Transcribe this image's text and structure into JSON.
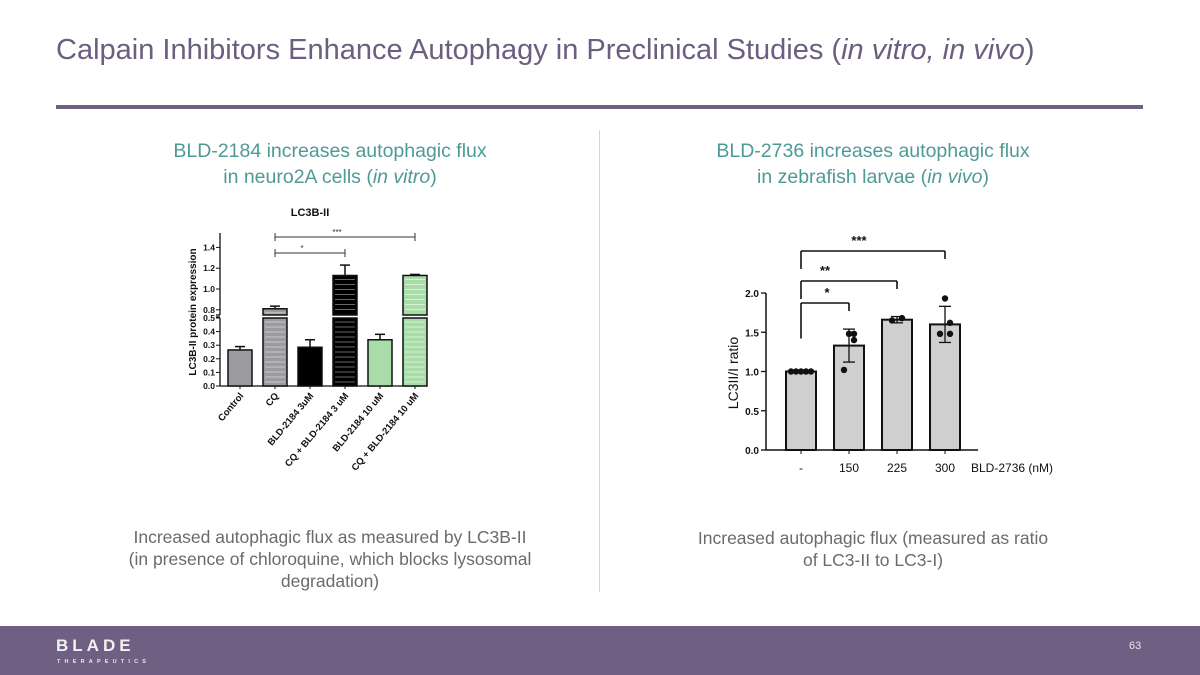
{
  "slide": {
    "title_main": "Calpain Inhibitors Enhance Autophagy in Preclinical Studies (",
    "title_italic": "in vitro, in vivo",
    "title_end": ")",
    "page_number": "63",
    "brand_colors": {
      "accent": "#6f6083",
      "teal": "#4e9a97",
      "text_gray": "#6b6b6b"
    }
  },
  "left_panel": {
    "subhead_line1": "BLD-2184 increases autophagic flux",
    "subhead_line2_start": "in neuro2A cells (",
    "subhead_line2_italic": "in vitro",
    "subhead_line2_end": ")",
    "caption_line1": "Increased autophagic flux as measured by LC3B-II",
    "caption_line2": "(in presence of chloroquine, which blocks lysosomal",
    "caption_line3": "degradation)"
  },
  "right_panel": {
    "subhead_line1": "BLD-2736 increases autophagic flux",
    "subhead_line2_start": "in zebrafish larvae (",
    "subhead_line2_italic": "in vivo",
    "subhead_line2_end": ")",
    "caption_line1": "Increased autophagic flux (measured as ratio",
    "caption_line2": "of LC3-II to LC3-I)"
  },
  "footer": {
    "logo_main": "BLADE",
    "logo_sub": "THERAPEUTICS"
  },
  "chart_data": [
    {
      "type": "bar",
      "title": "LC3B-II",
      "xlabel": "",
      "ylabel": "LC3B-II protein expression",
      "axis_break": {
        "lower": [
          0.0,
          0.5
        ],
        "upper": [
          0.75,
          1.5
        ]
      },
      "yticks_lower": [
        "0.0",
        "0.1",
        "0.2",
        "0.3",
        "0.4",
        "0.5"
      ],
      "yticks_upper": [
        "0.8",
        "1.0",
        "1.2",
        "1.4"
      ],
      "categories": [
        "Control",
        "CQ",
        "BLD-2184 3uM",
        "CQ + BLD-2184 3 uM",
        "BLD-2184 10 uM",
        "CQ + BLD-2184 10 uM"
      ],
      "values": [
        0.265,
        0.81,
        0.285,
        1.13,
        0.34,
        1.13
      ],
      "error": [
        0.025,
        0.025,
        0.055,
        0.1,
        0.04,
        0.01
      ],
      "fills": [
        "#9b9b9f",
        "#9b9b9f",
        "#000000",
        "#000000",
        "#a8dca8",
        "#a8dca8"
      ],
      "hatched": [
        false,
        true,
        false,
        true,
        false,
        true
      ],
      "significance": [
        {
          "from": "CQ",
          "to": "CQ + BLD-2184 10 uM",
          "label": "***"
        },
        {
          "from": "CQ",
          "to": "CQ + BLD-2184 3 uM",
          "label": "*"
        }
      ],
      "grid": false,
      "legend": "none"
    },
    {
      "type": "bar",
      "title": "",
      "xlabel": "BLD-2736 (nM)",
      "ylabel": "LC3II/I ratio",
      "ylim": [
        0,
        2.0
      ],
      "yticks": [
        "0.0",
        "0.5",
        "1.0",
        "1.5",
        "2.0"
      ],
      "categories": [
        "-",
        "150",
        "225",
        "300"
      ],
      "values": [
        1.0,
        1.33,
        1.66,
        1.6
      ],
      "error": [
        0.0,
        0.21,
        0.04,
        0.23
      ],
      "points": [
        [
          1.0,
          1.0,
          1.0,
          1.0,
          1.0
        ],
        [
          1.02,
          1.4,
          1.48,
          1.48
        ],
        [
          1.65,
          1.68
        ],
        [
          1.48,
          1.48,
          1.62,
          1.93
        ]
      ],
      "fill": "#cfcfcf",
      "significance": [
        {
          "from": "-",
          "to": "150",
          "label": "*"
        },
        {
          "from": "-",
          "to": "225",
          "label": "**"
        },
        {
          "from": "-",
          "to": "300",
          "label": "***"
        }
      ],
      "grid": false,
      "legend": "none"
    }
  ]
}
